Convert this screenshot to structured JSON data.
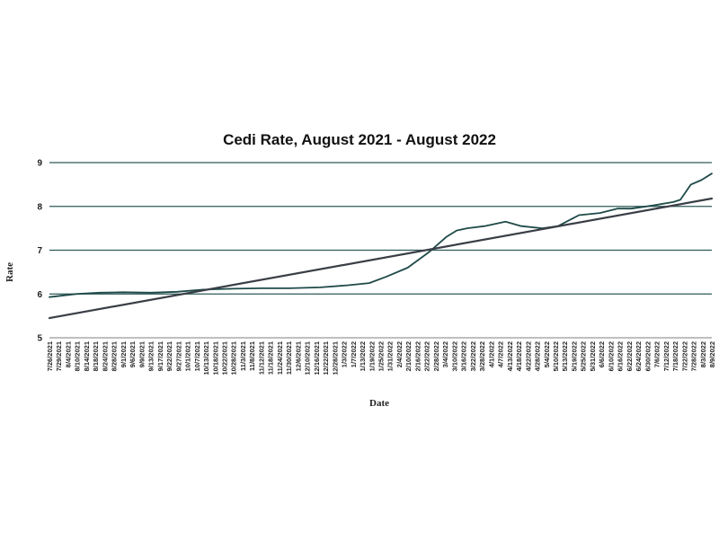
{
  "chart_data": {
    "type": "line",
    "title": "Cedi Rate, August 2021 - August 2022",
    "xlabel": "Date",
    "ylabel": "Rate",
    "ylim": [
      5,
      9
    ],
    "yticks": [
      5,
      6,
      7,
      8,
      9
    ],
    "grid": "horizontal",
    "legend": "none",
    "colors": {
      "series": "#1e4a48",
      "trend": "#3a3e46",
      "grid": "#2d5a58",
      "axis": "#555555"
    },
    "x_tick_labels": [
      "7/26/2021",
      "7/29/2021",
      "8/4/2021",
      "8/10/2021",
      "8/14/2021",
      "8/18/2021",
      "8/24/2021",
      "8/28/2021",
      "9/1/2021",
      "9/6/2021",
      "9/9/2021",
      "9/13/2021",
      "9/17/2021",
      "9/22/2021",
      "9/27/2021",
      "10/1/2021",
      "10/7/2021",
      "10/13/2021",
      "10/18/2021",
      "10/22/2021",
      "10/28/2021",
      "11/3/2021",
      "11/8/2021",
      "11/12/2021",
      "11/18/2021",
      "11/24/2021",
      "11/30/2021",
      "12/6/2021",
      "12/10/2021",
      "12/16/2021",
      "12/22/2021",
      "12/28/2021",
      "1/3/2022",
      "1/7/2022",
      "1/13/2022",
      "1/19/2022",
      "1/25/2022",
      "1/31/2022",
      "2/4/2022",
      "2/10/2022",
      "2/16/2022",
      "2/22/2022",
      "2/28/2022",
      "3/4/2022",
      "3/10/2022",
      "3/16/2022",
      "3/22/2022",
      "3/28/2022",
      "4/1/2022",
      "4/7/2022",
      "4/13/2022",
      "4/18/2022",
      "4/22/2022",
      "4/28/2022",
      "5/4/2022",
      "5/10/2022",
      "5/13/2022",
      "5/19/2022",
      "5/25/2022",
      "5/31/2022",
      "6/6/2022",
      "6/10/2022",
      "6/16/2022",
      "6/22/2022",
      "6/24/2022",
      "6/30/2022",
      "7/6/2022",
      "7/12/2022",
      "7/18/2022",
      "7/22/2022",
      "7/28/2022",
      "8/3/2022",
      "8/9/2022"
    ],
    "series": [
      {
        "kind": "data",
        "x": [
          "7/26/2021",
          "8/10/2021",
          "8/24/2021",
          "9/6/2021",
          "9/22/2021",
          "10/7/2021",
          "10/22/2021",
          "11/8/2021",
          "11/24/2021",
          "12/10/2021",
          "12/28/2021",
          "1/13/2022",
          "1/25/2022",
          "2/4/2022",
          "2/16/2022",
          "2/28/2022",
          "3/10/2022",
          "3/16/2022",
          "3/22/2022",
          "4/1/2022",
          "4/13/2022",
          "4/22/2022",
          "5/4/2022",
          "5/13/2022",
          "5/25/2022",
          "6/6/2022",
          "6/16/2022",
          "6/24/2022",
          "7/6/2022",
          "7/18/2022",
          "7/22/2022",
          "7/28/2022",
          "8/3/2022",
          "8/9/2022"
        ],
        "values": [
          5.93,
          6.0,
          6.03,
          6.04,
          6.03,
          6.05,
          6.1,
          6.12,
          6.13,
          6.13,
          6.15,
          6.2,
          6.25,
          6.4,
          6.6,
          6.95,
          7.3,
          7.45,
          7.5,
          7.55,
          7.65,
          7.55,
          7.5,
          7.55,
          7.8,
          7.85,
          7.95,
          7.95,
          8.02,
          8.1,
          8.15,
          8.5,
          8.6,
          8.75
        ]
      },
      {
        "kind": "trend",
        "x": [
          "7/26/2021",
          "8/9/2022"
        ],
        "values": [
          5.45,
          8.18
        ]
      }
    ]
  }
}
